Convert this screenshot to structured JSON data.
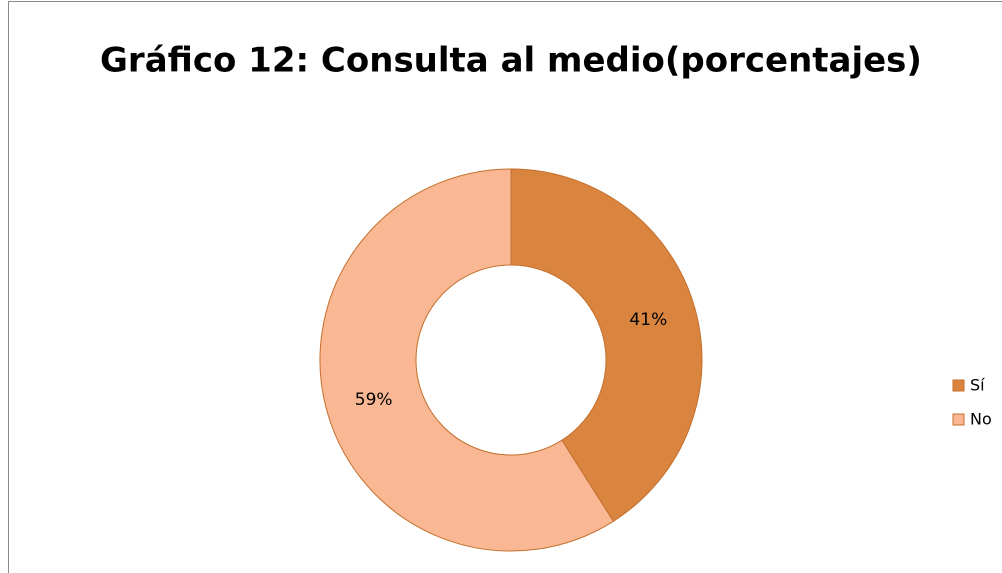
{
  "chart_data": {
    "type": "donut",
    "title": "Gráfico 12: Consulta al medio(porcentajes)",
    "categories": [
      "Sí",
      "No"
    ],
    "values": [
      41,
      59
    ],
    "colors": [
      "#d9843f",
      "#f9b893"
    ],
    "legend": "right"
  }
}
